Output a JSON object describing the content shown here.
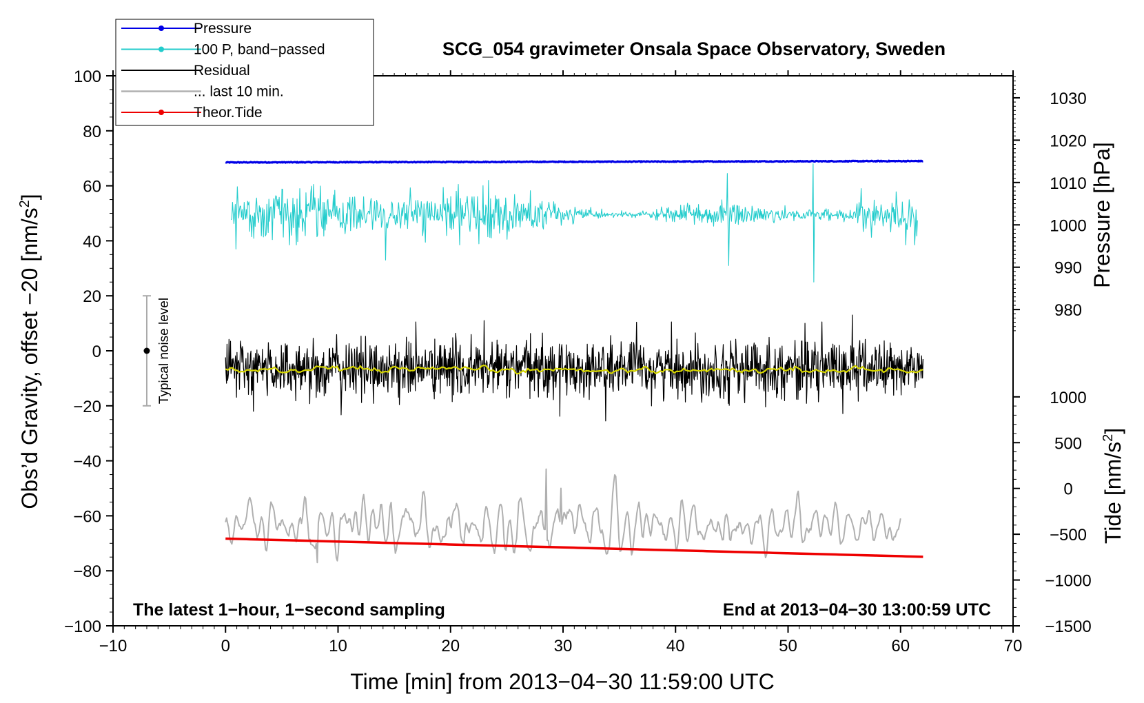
{
  "chart_data": {
    "type": "line",
    "title": "SCG_054 gravimeter Onsala Space Observatory, Sweden",
    "xlabel": "Time [min] from 2013−04−30 11:59:00 UTC",
    "ylabel_main": "Obs’d Gravity, offset −20 [nm/s",
    "ylabel_main_sup": "2",
    "ylabel_main_end": "]",
    "ylabel_pressure": "Pressure [hPa]",
    "ylabel_tide": "Tide [nm/s",
    "ylabel_tide_sup": "2",
    "ylabel_tide_end": "]",
    "xlim": [
      -10,
      70
    ],
    "ylim": [
      -100,
      100
    ],
    "x_ticks": [
      -10,
      0,
      10,
      20,
      30,
      40,
      50,
      60,
      70
    ],
    "x_tick_labels": [
      "−10",
      "0",
      "10",
      "20",
      "30",
      "40",
      "50",
      "60",
      "70"
    ],
    "y_ticks": [
      -100,
      -80,
      -60,
      -40,
      -20,
      0,
      20,
      40,
      60,
      80,
      100
    ],
    "y_tick_labels": [
      "−100",
      "−80",
      "−60",
      "−40",
      "−20",
      "0",
      "20",
      "40",
      "60",
      "80",
      "100"
    ],
    "pressure_axis": {
      "ticks": [
        980,
        990,
        1000,
        1010,
        1020,
        1030
      ],
      "tick_labels": [
        "980",
        "990",
        "1000",
        "1010",
        "1020",
        "1030"
      ],
      "ref_value": 980,
      "ref_y": 15,
      "y_per_unit": 1.54
    },
    "tide_axis": {
      "ticks": [
        -1500,
        -1000,
        -500,
        0,
        500,
        1000
      ],
      "tick_labels": [
        "−1500",
        "−1000",
        "−500",
        "0",
        "500",
        "1000"
      ],
      "ref_value": -1500,
      "ref_y": -100,
      "y_per_unit": 0.0333
    },
    "legend": [
      {
        "label": "Pressure",
        "color": "#0000e6",
        "marker": true
      },
      {
        "label": "100 P, band−passed",
        "color": "#22cccc",
        "marker": true
      },
      {
        "label": "Residual",
        "color": "#000000",
        "marker": false
      },
      {
        "label": "... last 10 min.",
        "color": "#b0b0b0",
        "marker": false
      },
      {
        "label": "Theor.Tide",
        "color": "#ee0000",
        "marker": true
      }
    ],
    "series": [
      {
        "name": "Pressure",
        "color": "#0000e6",
        "x_range": [
          0,
          62
        ],
        "start": 68.5,
        "end": 69.0,
        "noise": 0.3,
        "points": 1000
      },
      {
        "name": "100 P, band−passed",
        "color": "#22cccc",
        "x_range": [
          0.5,
          61.5
        ],
        "center": 49.5,
        "amplitude": 3.5,
        "points": 1000,
        "spikes": [
          [
            0.6,
            54
          ],
          [
            0.9,
            37
          ],
          [
            14.2,
            33
          ],
          [
            23.4,
            62
          ],
          [
            44.6,
            64.5
          ],
          [
            44.7,
            31
          ],
          [
            52.2,
            68
          ],
          [
            52.3,
            25
          ],
          [
            56.5,
            59
          ],
          [
            61.3,
            44
          ]
        ]
      },
      {
        "name": "Residual",
        "color": "#000000",
        "x_range": [
          0,
          62
        ],
        "center": -6.5,
        "amplitude": 8,
        "points": 1400,
        "spikes": [
          [
            23.0,
            11
          ],
          [
            33.8,
            -25.5
          ],
          [
            55.7,
            13
          ],
          [
            2.5,
            -22
          ],
          [
            51.5,
            10
          ]
        ]
      },
      {
        "name": "Residual (smoothed)",
        "color": "#d6d600",
        "x_range": [
          0,
          62
        ],
        "center": -7,
        "amplitude": 0.9,
        "points": 300
      },
      {
        "name": "... last 10 min.",
        "color": "#b0b0b0",
        "x_range": [
          0,
          60
        ],
        "center": -63.5,
        "amplitude": 6,
        "points": 640,
        "spikes": [
          [
            8.2,
            -77
          ],
          [
            28.5,
            -43
          ],
          [
            29.8,
            -50
          ]
        ]
      },
      {
        "name": "Theor.Tide",
        "color": "#ee0000",
        "x_range": [
          0,
          62
        ],
        "start": -68.3,
        "end": -74.9,
        "points": 200
      }
    ],
    "noise_level": {
      "label": "Typical noise level",
      "x": -7,
      "y_center": 0,
      "half_range": 20
    },
    "annotations": {
      "bottom_left": "The latest 1−hour, 1−second sampling",
      "bottom_right": "End at 2013−04−30 13:00:59 UTC"
    },
    "colors": {
      "axis": "#000000",
      "background": "#ffffff"
    }
  }
}
